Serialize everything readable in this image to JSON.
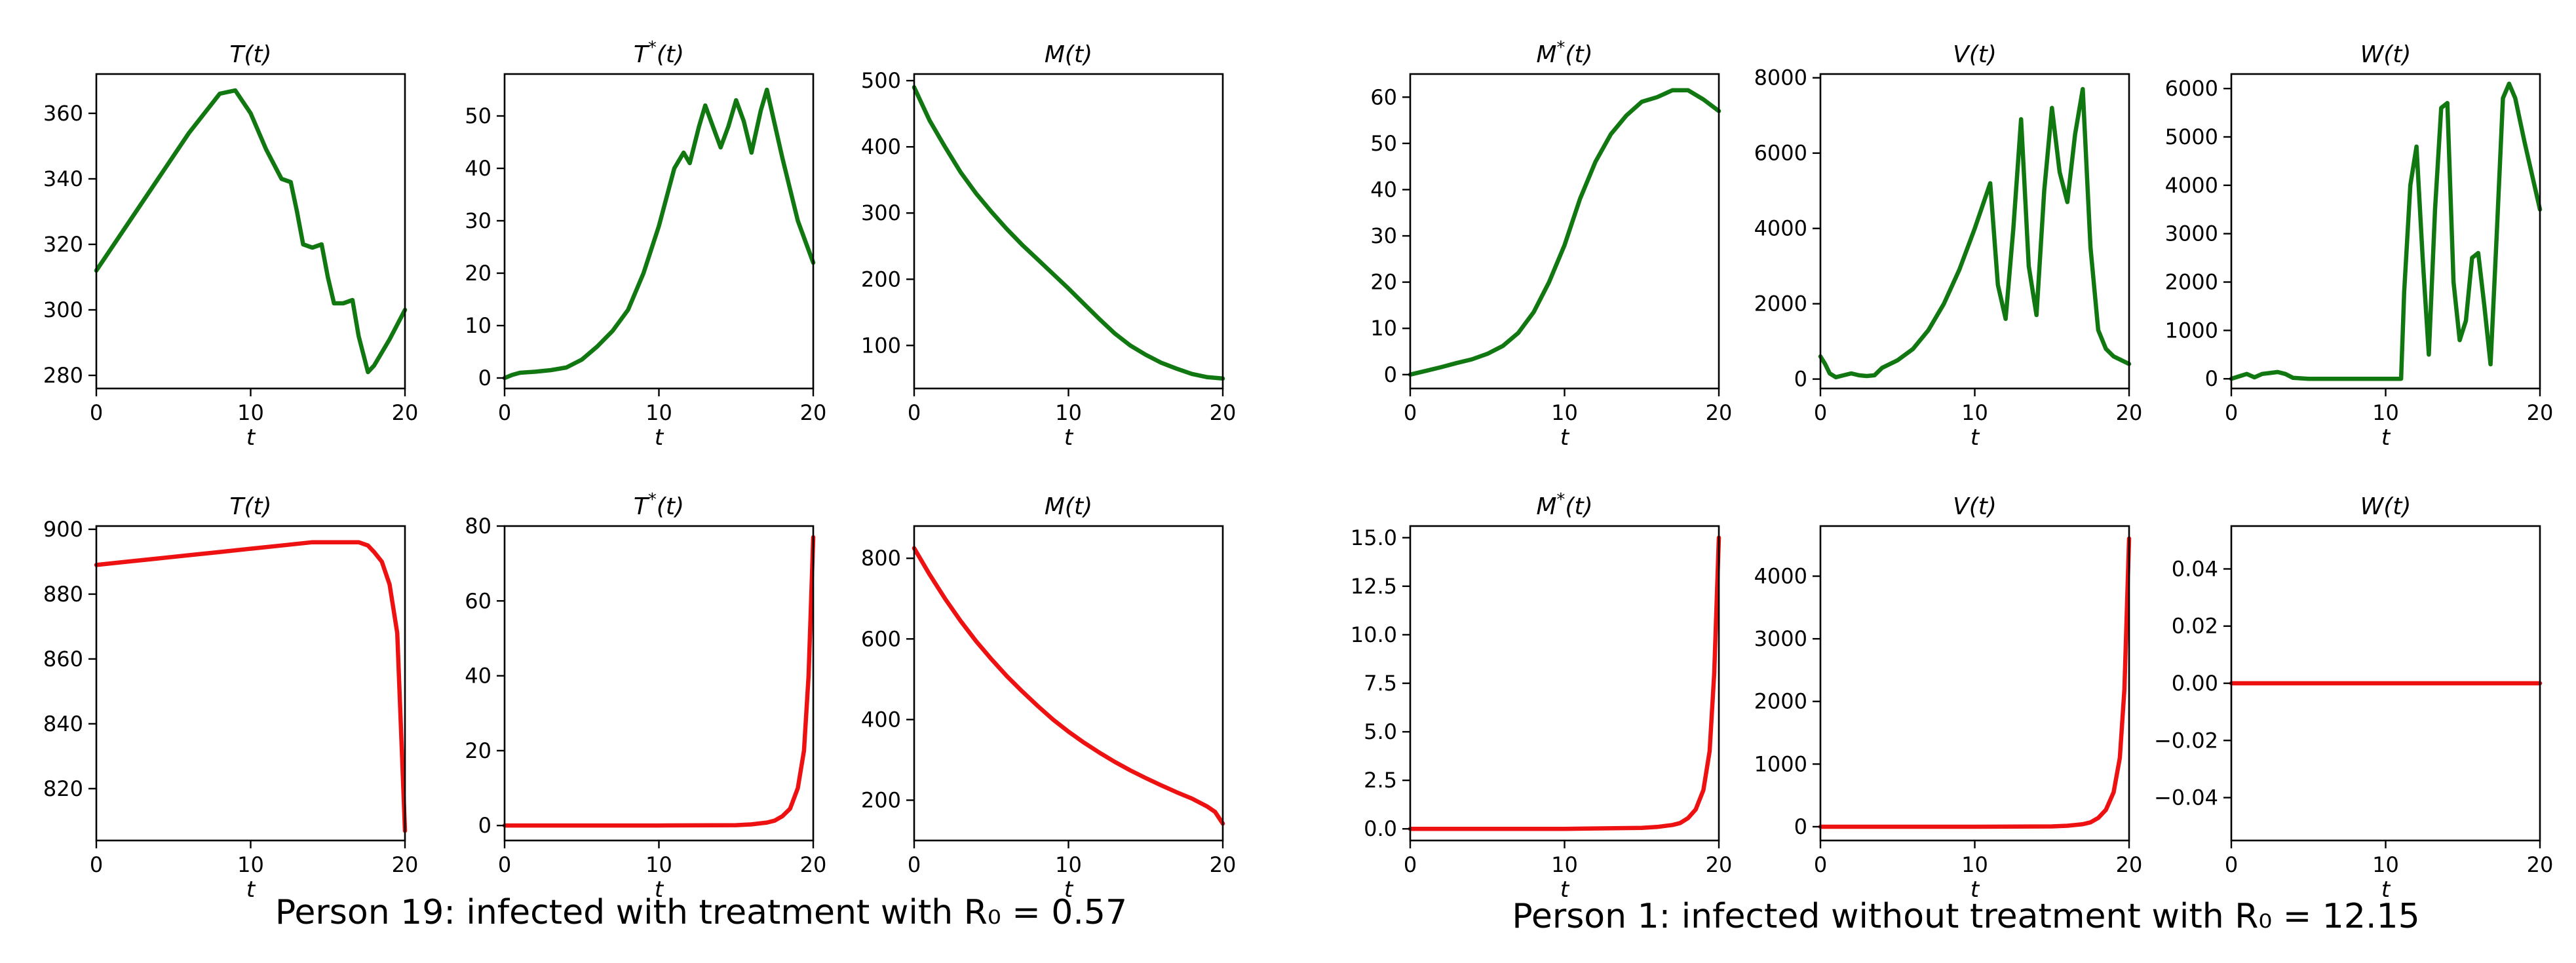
{
  "colors": {
    "treated": "#117711",
    "untreated": "#ee1111"
  },
  "captions": [
    "Person 19: infected with treatment with  R₀ = 0.57",
    "Person 1: infected without treatment with  R₀ = 12.15"
  ],
  "chart_data": [
    {
      "type": "line",
      "title": "T(t)",
      "xlabel": "t",
      "xlim": [
        0,
        20
      ],
      "ylim": [
        276,
        372
      ],
      "xticks": [
        "0",
        "10",
        "20"
      ],
      "yticks": [
        280,
        300,
        320,
        340,
        360
      ],
      "color": "treated",
      "x": [
        0,
        2,
        4,
        6,
        8,
        9,
        10,
        11,
        12,
        12.6,
        13,
        13.4,
        14,
        14.6,
        15,
        15.4,
        16,
        16.6,
        17,
        17.6,
        18,
        19,
        20
      ],
      "y": [
        312,
        326,
        340,
        354,
        366,
        367,
        360,
        349,
        340,
        339,
        330,
        320,
        319,
        320,
        310,
        302,
        302,
        303,
        292,
        281,
        283,
        291,
        300
      ]
    },
    {
      "type": "line",
      "title": "T*(t)",
      "xlabel": "t",
      "xlim": [
        0,
        20
      ],
      "ylim": [
        -2,
        58
      ],
      "xticks": [
        "0",
        "10",
        "20"
      ],
      "yticks": [
        0,
        10,
        20,
        30,
        40,
        50
      ],
      "color": "treated",
      "x": [
        0,
        0.5,
        1,
        2,
        3,
        4,
        5,
        6,
        7,
        8,
        9,
        10,
        11,
        11.6,
        12,
        12.6,
        13,
        13.5,
        14,
        14.5,
        15,
        15.5,
        16,
        16.6,
        17,
        18,
        19,
        20
      ],
      "y": [
        0,
        0.6,
        1,
        1.2,
        1.5,
        2,
        3.5,
        6,
        9,
        13,
        20,
        29,
        40,
        43,
        41,
        48,
        52,
        48,
        44,
        48,
        53,
        49,
        43,
        51,
        55,
        42,
        30,
        22
      ]
    },
    {
      "type": "line",
      "title": "M(t)",
      "xlabel": "t",
      "xlim": [
        0,
        20
      ],
      "ylim": [
        35,
        510
      ],
      "xticks": [
        "0",
        "10",
        "20"
      ],
      "yticks": [
        100,
        200,
        300,
        400,
        500
      ],
      "color": "treated",
      "x": [
        0,
        1,
        2,
        3,
        4,
        5,
        6,
        7,
        8,
        9,
        10,
        11,
        12,
        13,
        14,
        15,
        16,
        17,
        18,
        19,
        20
      ],
      "y": [
        490,
        440,
        400,
        362,
        330,
        302,
        276,
        252,
        230,
        208,
        186,
        163,
        140,
        118,
        100,
        86,
        74,
        65,
        57,
        52,
        50
      ]
    },
    {
      "type": "line",
      "title": "M*(t)",
      "xlabel": "t",
      "xlim": [
        0,
        20
      ],
      "ylim": [
        -3,
        65
      ],
      "xticks": [
        "0",
        "10",
        "20"
      ],
      "yticks": [
        0,
        10,
        20,
        30,
        40,
        50,
        60
      ],
      "color": "treated",
      "x": [
        0,
        1,
        2,
        3,
        4,
        5,
        6,
        7,
        8,
        9,
        10,
        11,
        12,
        13,
        14,
        15,
        16,
        17,
        18,
        19,
        20
      ],
      "y": [
        0,
        0.8,
        1.6,
        2.5,
        3.3,
        4.5,
        6.2,
        9,
        13.5,
        20,
        28,
        38,
        46,
        52,
        56,
        59,
        60,
        61.5,
        61.5,
        59.5,
        57
      ]
    },
    {
      "type": "line",
      "title": "V(t)",
      "xlabel": "t",
      "xlim": [
        0,
        20
      ],
      "ylim": [
        -250,
        8100
      ],
      "xticks": [
        "0",
        "10",
        "20"
      ],
      "yticks": [
        0,
        2000,
        4000,
        6000,
        8000
      ],
      "color": "treated",
      "x": [
        0,
        0.3,
        0.6,
        1,
        1.5,
        2,
        2.5,
        3,
        3.5,
        4,
        5,
        6,
        7,
        8,
        9,
        10,
        10.5,
        11,
        11.5,
        12,
        12.5,
        13,
        13.5,
        14,
        14.5,
        15,
        15.5,
        16,
        16.5,
        17,
        17.5,
        18,
        18.5,
        19,
        20
      ],
      "y": [
        600,
        400,
        150,
        50,
        100,
        150,
        100,
        80,
        100,
        300,
        500,
        800,
        1300,
        2000,
        2900,
        4000,
        4600,
        5200,
        2500,
        1600,
        4000,
        6900,
        3000,
        1700,
        5000,
        7200,
        5500,
        4700,
        6500,
        7700,
        3500,
        1300,
        800,
        600,
        400
      ]
    },
    {
      "type": "line",
      "title": "W(t)",
      "xlabel": "t",
      "xlim": [
        0,
        20
      ],
      "ylim": [
        -200,
        6300
      ],
      "xticks": [
        "0",
        "10",
        "20"
      ],
      "yticks": [
        0,
        1000,
        2000,
        3000,
        4000,
        5000,
        6000
      ],
      "color": "treated",
      "x": [
        0,
        0.5,
        1,
        1.5,
        2,
        2.5,
        3,
        3.5,
        4,
        4.5,
        5,
        6,
        8,
        10,
        11,
        11.2,
        11.6,
        12,
        12.4,
        12.8,
        13.2,
        13.6,
        14,
        14.4,
        14.8,
        15.2,
        15.6,
        16,
        16.4,
        16.8,
        17.2,
        17.6,
        18,
        18.4,
        19,
        20
      ],
      "y": [
        0,
        50,
        100,
        30,
        100,
        120,
        140,
        100,
        20,
        10,
        0,
        0,
        0,
        0,
        0,
        1800,
        4000,
        4800,
        2500,
        500,
        3500,
        5600,
        5700,
        2000,
        800,
        1200,
        2500,
        2600,
        1500,
        300,
        3000,
        5800,
        6100,
        5800,
        4900,
        3500
      ]
    },
    {
      "type": "line",
      "title": "T(t)",
      "xlabel": "t",
      "xlim": [
        0,
        20
      ],
      "ylim": [
        804,
        901
      ],
      "xticks": [
        "0",
        "10",
        "20"
      ],
      "yticks": [
        820,
        840,
        860,
        880,
        900
      ],
      "color": "untreated",
      "x": [
        0,
        2,
        4,
        6,
        8,
        10,
        12,
        14,
        15,
        16,
        17,
        17.6,
        18,
        18.5,
        19,
        19.5,
        20
      ],
      "y": [
        889,
        890,
        891,
        892,
        893,
        894,
        895,
        896,
        896,
        896,
        896,
        895,
        893,
        890,
        883,
        868,
        807
      ]
    },
    {
      "type": "line",
      "title": "T*(t)",
      "xlabel": "t",
      "xlim": [
        0,
        20
      ],
      "ylim": [
        -4,
        80
      ],
      "xticks": [
        "0",
        "10",
        "20"
      ],
      "yticks": [
        0,
        20,
        40,
        60,
        80
      ],
      "color": "untreated",
      "x": [
        0,
        5,
        10,
        15,
        16,
        17,
        17.5,
        18,
        18.5,
        19,
        19.4,
        19.7,
        20
      ],
      "y": [
        0,
        0,
        0,
        0.1,
        0.3,
        0.8,
        1.3,
        2.5,
        4.5,
        10,
        20,
        40,
        77
      ]
    },
    {
      "type": "line",
      "title": "M(t)",
      "xlabel": "t",
      "xlim": [
        0,
        20
      ],
      "ylim": [
        100,
        880
      ],
      "xticks": [
        "0",
        "10",
        "20"
      ],
      "yticks": [
        200,
        400,
        600,
        800
      ],
      "color": "untreated",
      "x": [
        0,
        1,
        2,
        3,
        4,
        5,
        6,
        7,
        8,
        9,
        10,
        11,
        12,
        13,
        14,
        15,
        16,
        17,
        18,
        19,
        19.5,
        20
      ],
      "y": [
        825,
        760,
        700,
        645,
        595,
        550,
        508,
        470,
        434,
        400,
        370,
        343,
        318,
        295,
        274,
        255,
        237,
        220,
        204,
        184,
        171,
        142
      ]
    },
    {
      "type": "line",
      "title": "M*(t)",
      "xlabel": "t",
      "xlim": [
        0,
        20
      ],
      "ylim": [
        -0.6,
        15.6
      ],
      "xticks": [
        "0",
        "10",
        "20"
      ],
      "yticks": [
        "0.0",
        "2.5",
        "5.0",
        "7.5",
        "10.0",
        "12.5",
        "15.0"
      ],
      "color": "untreated",
      "x": [
        0,
        5,
        10,
        15,
        16,
        17,
        17.5,
        18,
        18.5,
        19,
        19.4,
        19.7,
        20
      ],
      "y": [
        0,
        0,
        0,
        0.05,
        0.1,
        0.2,
        0.3,
        0.55,
        1,
        2,
        4,
        8,
        15
      ]
    },
    {
      "type": "line",
      "title": "V(t)",
      "xlabel": "t",
      "xlim": [
        0,
        20
      ],
      "ylim": [
        -220,
        4800
      ],
      "xticks": [
        "0",
        "10",
        "20"
      ],
      "yticks": [
        0,
        1000,
        2000,
        3000,
        4000
      ],
      "color": "untreated",
      "x": [
        0,
        5,
        10,
        15,
        16,
        17,
        17.5,
        18,
        18.5,
        19,
        19.4,
        19.7,
        20
      ],
      "y": [
        0,
        0,
        0,
        5,
        15,
        40,
        70,
        140,
        270,
        550,
        1100,
        2200,
        4600
      ]
    },
    {
      "type": "line",
      "title": "W(t)",
      "xlabel": "t",
      "xlim": [
        0,
        20
      ],
      "ylim": [
        -0.055,
        0.055
      ],
      "xticks": [
        "0",
        "10",
        "20"
      ],
      "yticks": [
        "−0.04",
        "−0.02",
        "0.00",
        "0.02",
        "0.04"
      ],
      "ytickvals": [
        -0.04,
        -0.02,
        0,
        0.02,
        0.04
      ],
      "color": "untreated",
      "x": [
        0,
        20
      ],
      "y": [
        0,
        0
      ]
    }
  ]
}
